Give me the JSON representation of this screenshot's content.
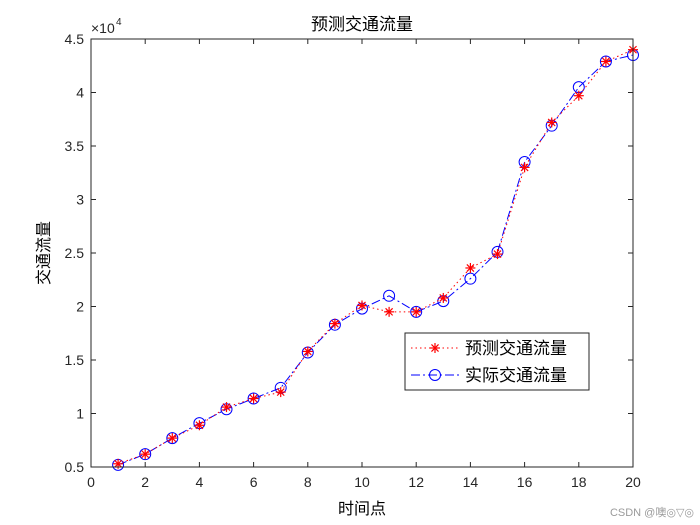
{
  "chart_data": {
    "type": "line",
    "title": "预测交通流量",
    "xlabel": "时间点",
    "ylabel": "交通流量",
    "xlim": [
      0,
      20
    ],
    "ylim": [
      0.5,
      4.5
    ],
    "y_exponent_label": "×10",
    "y_exponent_power": "4",
    "x_ticks": [
      0,
      2,
      4,
      6,
      8,
      10,
      12,
      14,
      16,
      18,
      20
    ],
    "y_ticks": [
      0.5,
      1,
      1.5,
      2,
      2.5,
      3,
      3.5,
      4,
      4.5
    ],
    "y_tick_labels": [
      "0.5",
      "1",
      "1.5",
      "2",
      "2.5",
      "3",
      "3.5",
      "4",
      "4.5"
    ],
    "grid": false,
    "legend_position": "center-right",
    "x": [
      1,
      2,
      3,
      4,
      5,
      6,
      7,
      8,
      9,
      10,
      11,
      12,
      13,
      14,
      15,
      16,
      17,
      18,
      19,
      20
    ],
    "series": [
      {
        "name": "预测交通流量",
        "color": "#ff0000",
        "marker": "asterisk",
        "line_style": "dotted",
        "values": [
          0.53,
          0.62,
          0.77,
          0.89,
          1.06,
          1.14,
          1.2,
          1.58,
          1.84,
          2.01,
          1.95,
          1.95,
          2.08,
          2.36,
          2.49,
          3.3,
          3.72,
          3.97,
          4.29,
          4.4
        ]
      },
      {
        "name": "实际交通流量",
        "color": "#0000ff",
        "marker": "circle",
        "line_style": "dash-dot",
        "values": [
          0.52,
          0.62,
          0.77,
          0.91,
          1.04,
          1.14,
          1.24,
          1.57,
          1.83,
          1.98,
          2.1,
          1.95,
          2.05,
          2.26,
          2.51,
          3.35,
          3.69,
          4.05,
          4.29,
          4.35
        ]
      }
    ]
  },
  "watermark": "CSDN @噢◎▽◎"
}
